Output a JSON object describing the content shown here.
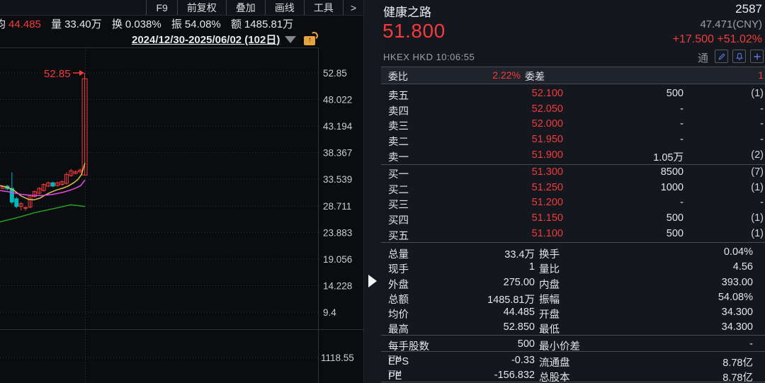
{
  "left_panel": {
    "toolbar": {
      "buttons": [
        "F9",
        "前复权",
        "叠加",
        "画线",
        "工具",
        ">"
      ]
    },
    "stat_bar": {
      "avg_label": "均",
      "avg_value": "44.485",
      "vol_label": "量",
      "vol_value": "33.40万",
      "turn_label": "换",
      "turn_value": "0.038%",
      "amp_label": "振",
      "amp_value": "54.08%",
      "amt_label": "额",
      "amt_value": "1485.81万"
    },
    "date_range": "2024/12/30-2025/06/02 (102日)",
    "lock_glyph": "↑"
  },
  "chart": {
    "type": "candlestick",
    "colors": {
      "up": "#f23b3b",
      "down": "#00b8bc",
      "ma1": "#d7c24b",
      "ma2": "#e54ae5",
      "ma3": "#23a523",
      "grid": "#33363c",
      "axis_text": "#caced3",
      "border": "#2e3138",
      "annotation": "#f23c3c"
    },
    "y_axis_labels": [
      "52.85",
      "48.022",
      "43.194",
      "38.367",
      "33.539",
      "28.711",
      "23.883",
      "19.056",
      "14.228",
      "9.4"
    ],
    "y_axis_values": [
      52.85,
      48.022,
      43.194,
      38.367,
      33.539,
      28.711,
      23.883,
      19.056,
      14.228,
      9.4
    ],
    "volume_axis_label": "1118.55",
    "annotation_text": "52.85",
    "candles": [
      {
        "dir": "up",
        "o": 31.9,
        "c": 32.2,
        "h": 32.4,
        "l": 31.7
      },
      {
        "dir": "down",
        "o": 32.3,
        "c": 31.8,
        "h": 32.5,
        "l": 31.6
      },
      {
        "dir": "down",
        "o": 31.9,
        "c": 29.4,
        "h": 34.8,
        "l": 29.0
      },
      {
        "dir": "down",
        "o": 30.0,
        "c": 28.6,
        "h": 30.3,
        "l": 28.3
      },
      {
        "dir": "up",
        "o": 28.6,
        "c": 29.1,
        "h": 29.4,
        "l": 27.9
      },
      {
        "dir": "up",
        "o": 28.3,
        "c": 28.4,
        "h": 28.6,
        "l": 27.8
      },
      {
        "dir": "up",
        "o": 28.5,
        "c": 30.6,
        "h": 30.8,
        "l": 28.3
      },
      {
        "dir": "up",
        "o": 30.4,
        "c": 31.3,
        "h": 31.5,
        "l": 30.2
      },
      {
        "dir": "up",
        "o": 31.0,
        "c": 31.9,
        "h": 32.1,
        "l": 30.8
      },
      {
        "dir": "up",
        "o": 31.5,
        "c": 32.6,
        "h": 32.8,
        "l": 31.3
      },
      {
        "dir": "up",
        "o": 32.3,
        "c": 32.9,
        "h": 33.1,
        "l": 32.1
      },
      {
        "dir": "down",
        "o": 32.9,
        "c": 32.3,
        "h": 33.1,
        "l": 32.1
      },
      {
        "dir": "up",
        "o": 32.4,
        "c": 32.9,
        "h": 33.1,
        "l": 32.2
      },
      {
        "dir": "up",
        "o": 32.6,
        "c": 33.1,
        "h": 33.3,
        "l": 32.4
      },
      {
        "dir": "up",
        "o": 32.8,
        "c": 34.4,
        "h": 34.8,
        "l": 32.6
      },
      {
        "dir": "up",
        "o": 34.2,
        "c": 35.1,
        "h": 35.4,
        "l": 34.0
      },
      {
        "dir": "up",
        "o": 34.6,
        "c": 34.9,
        "h": 35.2,
        "l": 34.4
      },
      {
        "dir": "up",
        "o": 34.9,
        "c": 35.2,
        "h": 35.5,
        "l": 34.7
      },
      {
        "dir": "up",
        "o": 34.3,
        "c": 51.8,
        "h": 52.85,
        "l": 34.3
      }
    ],
    "ma_lines": [
      {
        "name": "ma1",
        "pts": [
          [
            0,
            32.4
          ],
          [
            10,
            32.1
          ],
          [
            20,
            31.5
          ],
          [
            30,
            30.5
          ],
          [
            40,
            29.9
          ],
          [
            48,
            29.8
          ],
          [
            56,
            30.1
          ],
          [
            64,
            30.7
          ],
          [
            72,
            31.2
          ],
          [
            80,
            31.6
          ],
          [
            88,
            31.9
          ],
          [
            96,
            32.3
          ],
          [
            104,
            32.9
          ],
          [
            110,
            33.5
          ],
          [
            115,
            34.4
          ],
          [
            120,
            36.5
          ]
        ]
      },
      {
        "name": "ma2",
        "pts": [
          [
            0,
            31.5
          ],
          [
            15,
            31.2
          ],
          [
            30,
            30.8
          ],
          [
            45,
            30.6
          ],
          [
            60,
            30.6
          ],
          [
            75,
            30.8
          ],
          [
            90,
            31.2
          ],
          [
            100,
            31.6
          ],
          [
            108,
            32.0
          ],
          [
            114,
            32.4
          ],
          [
            120,
            33.4
          ]
        ]
      },
      {
        "name": "ma3",
        "pts": [
          [
            0,
            25.8
          ],
          [
            25,
            26.6
          ],
          [
            50,
            27.5
          ],
          [
            75,
            28.2
          ],
          [
            100,
            28.9
          ],
          [
            120,
            28.6
          ]
        ]
      }
    ]
  },
  "quote_panel": {
    "header": {
      "name": "健康之路",
      "code": "2587",
      "price": "51.800",
      "cny": "47.471(CNY)",
      "change": "+17.500 +51.02%",
      "exchange_line": "HKEX  HKD  10:06:55",
      "tong": "通"
    },
    "weibi_row": {
      "label1": "委比",
      "value1": "2.22%",
      "label2": "委差",
      "value2": "1"
    },
    "sell_orders": [
      {
        "label": "卖五",
        "price": "52.100",
        "volume": "500",
        "count": "(1)"
      },
      {
        "label": "卖四",
        "price": "52.050",
        "volume": "-",
        "count": "-"
      },
      {
        "label": "卖三",
        "price": "52.000",
        "volume": "-",
        "count": "-"
      },
      {
        "label": "卖二",
        "price": "51.950",
        "volume": "-",
        "count": "-"
      },
      {
        "label": "卖一",
        "price": "51.900",
        "volume": "1.05万",
        "count": "(2)"
      }
    ],
    "buy_orders": [
      {
        "label": "买一",
        "price": "51.300",
        "volume": "8500",
        "count": "(7)"
      },
      {
        "label": "买二",
        "price": "51.250",
        "volume": "1000",
        "count": "(1)"
      },
      {
        "label": "买三",
        "price": "51.200",
        "volume": "-",
        "count": "-"
      },
      {
        "label": "买四",
        "price": "51.150",
        "volume": "500",
        "count": "(1)"
      },
      {
        "label": "买五",
        "price": "51.100",
        "volume": "500",
        "count": "(1)"
      }
    ],
    "stats": [
      {
        "l1": "总量",
        "v1": "33.4万",
        "l2": "换手",
        "v2": "0.04%"
      },
      {
        "l1": "现手",
        "v1": "1",
        "l2": "量比",
        "v2": "4.56"
      },
      {
        "l1": "外盘",
        "v1": "275.00",
        "l2": "内盘",
        "v2": "393.00"
      },
      {
        "l1": "总额",
        "v1": "1485.81万",
        "l2": "振幅",
        "v2": "54.08%"
      },
      {
        "l1": "均价",
        "v1": "44.485",
        "l2": "开盘",
        "v2": "34.300"
      },
      {
        "l1": "最高",
        "v1": "52.850",
        "l2": "最低",
        "v2": "34.300"
      }
    ],
    "lot_row": {
      "l1": "每手股数",
      "v1": "500",
      "l2": "最小价差",
      "v2": "-"
    },
    "fundamentals": [
      {
        "l1": "EPS",
        "sup": "TTM",
        "v1": "-0.33",
        "l2": "流通盘",
        "v2": "8.78亿"
      },
      {
        "l1": "PE",
        "sup": "TTM",
        "v1": "-156.832",
        "l2": "总股本",
        "v2": "8.78亿"
      }
    ]
  }
}
